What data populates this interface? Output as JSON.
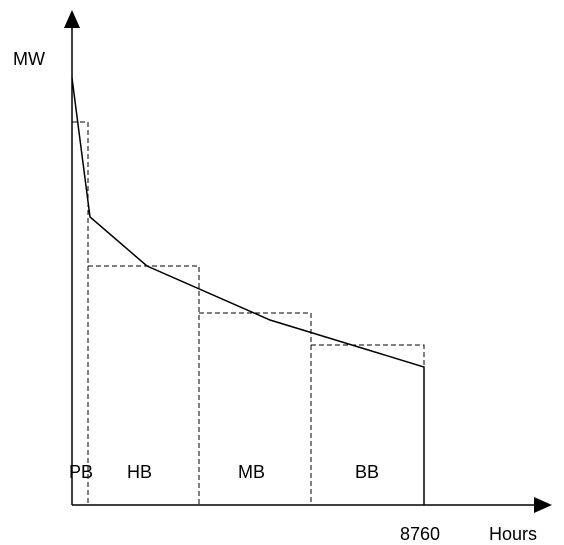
{
  "axes": {
    "y_label": "MW",
    "x_label": "Hours",
    "x_end_tick": "8760"
  },
  "blocks": [
    {
      "label": "PB"
    },
    {
      "label": "HB"
    },
    {
      "label": "MB"
    },
    {
      "label": "BB"
    }
  ],
  "colors": {
    "line": "#000000",
    "background": "#ffffff"
  }
}
